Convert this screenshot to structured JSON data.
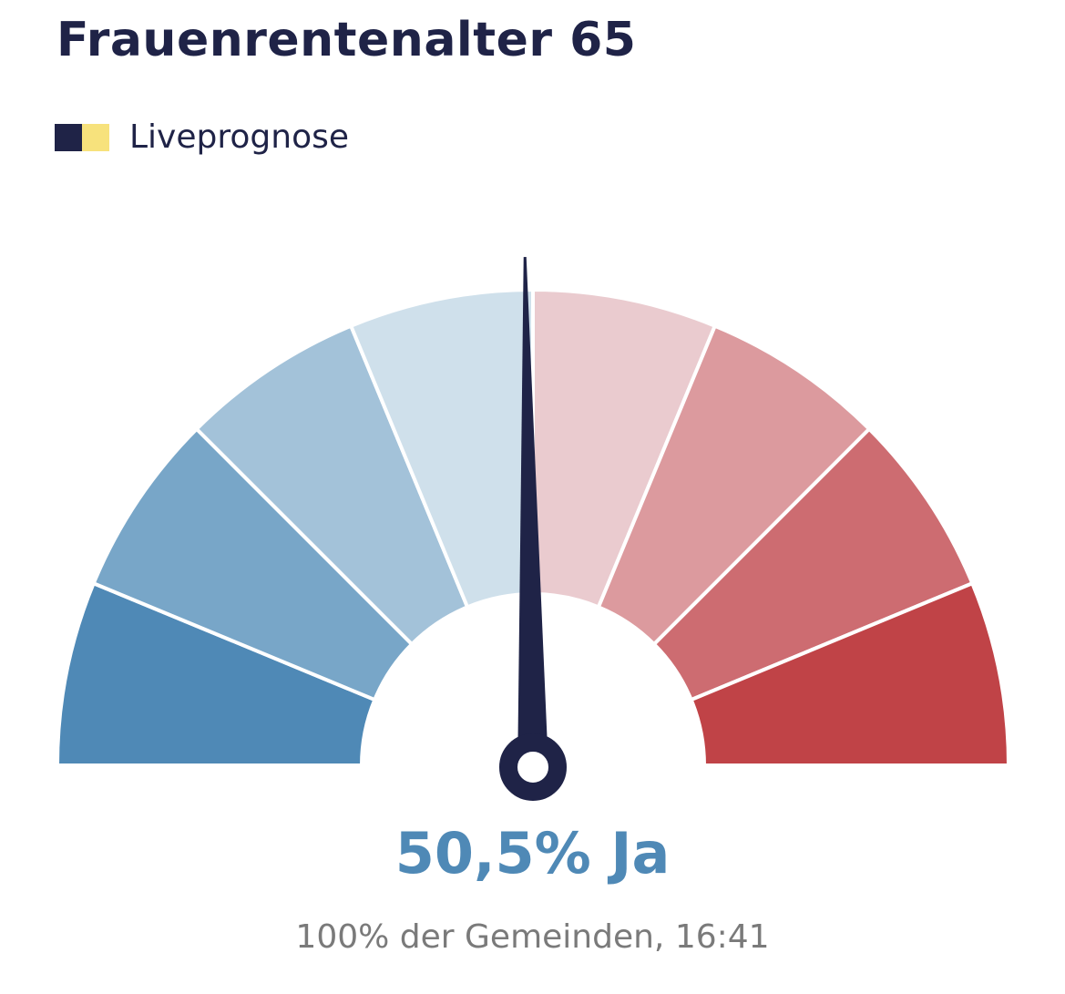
{
  "title": "Frauenrentenalter 65",
  "legend": {
    "label": "Liveprognose",
    "colors": [
      "#1f2347",
      "#f7e27c"
    ]
  },
  "chart_data": {
    "type": "gauge",
    "scale": "yes-share percent, 100 at left to 0 at right",
    "value": 50.5,
    "range": [
      0,
      100
    ],
    "segments": [
      {
        "from": 100,
        "to": 87.5,
        "color": "#4f89b6"
      },
      {
        "from": 87.5,
        "to": 75,
        "color": "#78a6c8"
      },
      {
        "from": 75,
        "to": 62.5,
        "color": "#a3c2d9"
      },
      {
        "from": 62.5,
        "to": 50,
        "color": "#cfe0eb"
      },
      {
        "from": 50,
        "to": 37.5,
        "color": "#eacbcf"
      },
      {
        "from": 37.5,
        "to": 25,
        "color": "#dc9a9e"
      },
      {
        "from": 25,
        "to": 12.5,
        "color": "#cd6c71"
      },
      {
        "from": 12.5,
        "to": 0,
        "color": "#c04347"
      }
    ],
    "needle_color": "#1f2347"
  },
  "result": {
    "text": "50,5% Ja",
    "color": "#4f89b6"
  },
  "footnote": "100% der Gemeinden, 16:41"
}
